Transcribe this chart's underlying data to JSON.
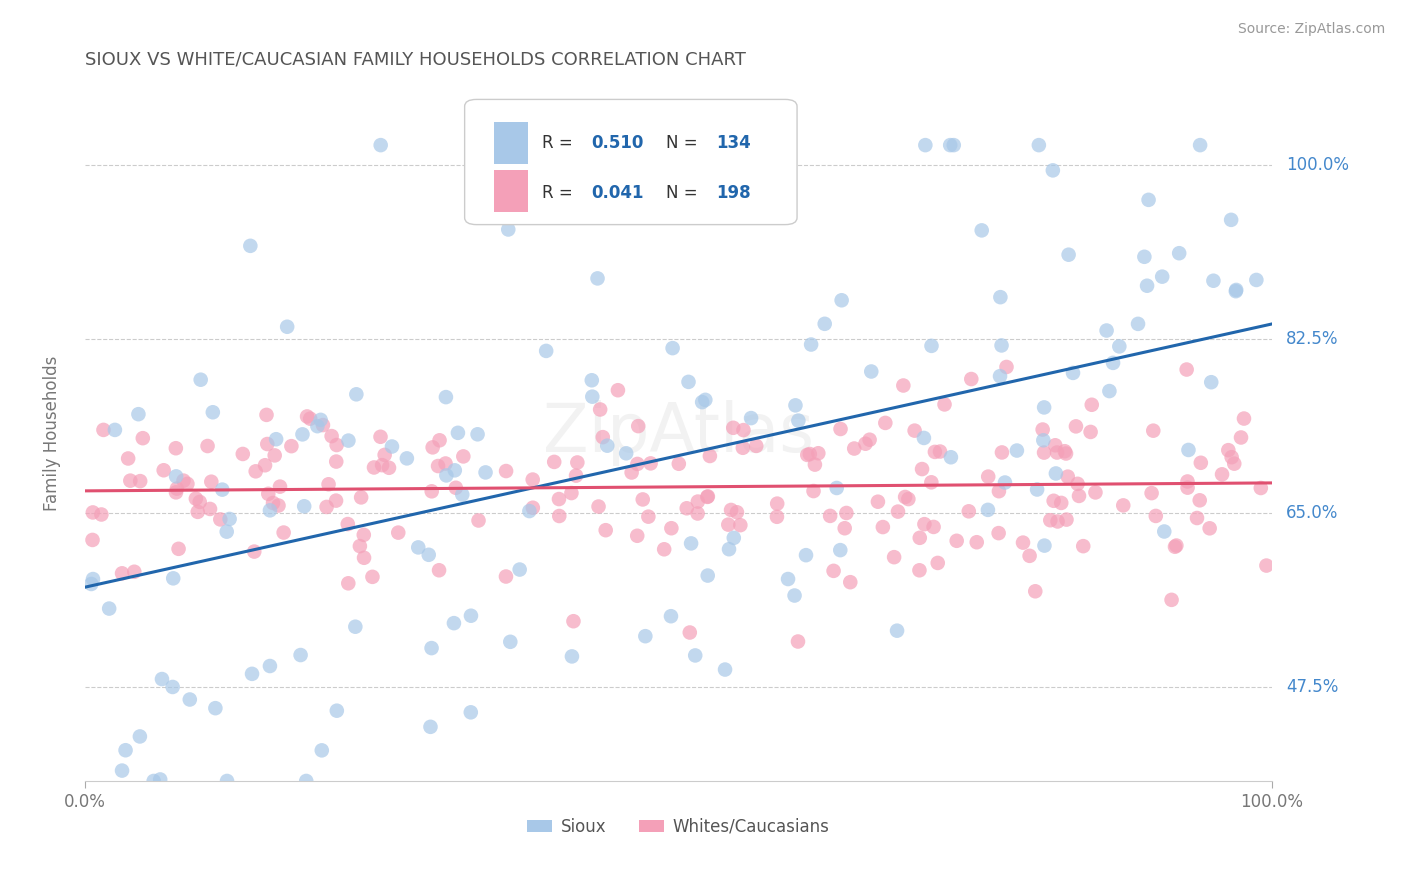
{
  "title": "SIOUX VS WHITE/CAUCASIAN FAMILY HOUSEHOLDS CORRELATION CHART",
  "source": "Source: ZipAtlas.com",
  "ylabel": "Family Households",
  "xlim": [
    0.0,
    1.0
  ],
  "ylim": [
    0.38,
    1.08
  ],
  "yticks": [
    0.475,
    0.65,
    0.825,
    1.0
  ],
  "ytick_labels": [
    "47.5%",
    "65.0%",
    "82.5%",
    "100.0%"
  ],
  "sioux_R": 0.51,
  "sioux_N": 134,
  "white_R": 0.041,
  "white_N": 198,
  "sioux_color": "#a8c8e8",
  "sioux_line_color": "#2166ac",
  "white_color": "#f4a0b8",
  "white_line_color": "#e05070",
  "legend_label_sioux": "Sioux",
  "legend_label_white": "Whites/Caucasians",
  "background_color": "#ffffff",
  "grid_color": "#cccccc",
  "title_color": "#555555",
  "annotation_color": "#4488cc",
  "watermark": "ZipAtlas",
  "sioux_seed": 42,
  "white_seed": 99,
  "sioux_line_start_y": 0.575,
  "sioux_line_end_y": 0.84,
  "white_line_y": 0.672
}
